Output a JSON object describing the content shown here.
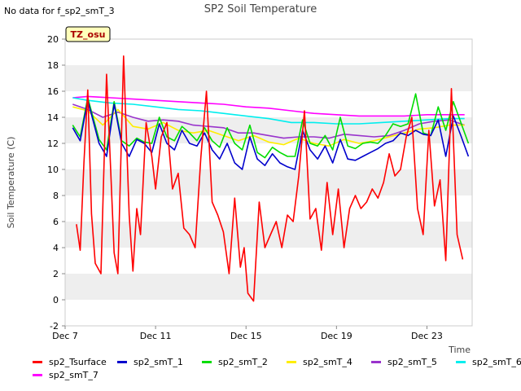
{
  "no_data_note": "No data for f_sp2_smT_3",
  "badge": "TZ_osu",
  "chart_data": {
    "type": "line",
    "title": "SP2 Soil Temperature",
    "xlabel": "Time",
    "ylabel": "Soil Temperature (C)",
    "xlim": [
      "2023-12-07",
      "2023-12-25"
    ],
    "ylim": [
      -2,
      20
    ],
    "yticks": [
      -2,
      0,
      2,
      4,
      6,
      8,
      10,
      12,
      14,
      16,
      18,
      20
    ],
    "xticks": [
      {
        "date": "2023-12-07",
        "label": "Dec 7"
      },
      {
        "date": "2023-12-11",
        "label": "Dec 11"
      },
      {
        "date": "2023-12-15",
        "label": "Dec 15"
      },
      {
        "date": "2023-12-19",
        "label": "Dec 19"
      },
      {
        "date": "2023-12-23",
        "label": "Dec 23"
      }
    ],
    "grid": "horizontal bands",
    "legend_position": "bottom",
    "series": [
      {
        "name": "sp2_Tsurface",
        "color": "#ff0000",
        "x": [
          "2023-12-07T12:00",
          "2023-12-07T16:00",
          "2023-12-07T20:00",
          "2023-12-08T00:00",
          "2023-12-08T04:00",
          "2023-12-08T08:00",
          "2023-12-08T14:00",
          "2023-12-08T20:00",
          "2023-12-09T00:00",
          "2023-12-09T04:00",
          "2023-12-09T08:00",
          "2023-12-09T14:00",
          "2023-12-09T20:00",
          "2023-12-10T00:00",
          "2023-12-10T04:00",
          "2023-12-10T08:00",
          "2023-12-10T14:00",
          "2023-12-10T20:00",
          "2023-12-11T00:00",
          "2023-12-11T06:00",
          "2023-12-11T12:00",
          "2023-12-11T18:00",
          "2023-12-12T00:00",
          "2023-12-12T06:00",
          "2023-12-12T12:00",
          "2023-12-12T18:00",
          "2023-12-13T00:00",
          "2023-12-13T06:00",
          "2023-12-13T12:00",
          "2023-12-13T18:00",
          "2023-12-14T00:00",
          "2023-12-14T06:00",
          "2023-12-14T12:00",
          "2023-12-14T18:00",
          "2023-12-14T22:00",
          "2023-12-15T02:00",
          "2023-12-15T08:00",
          "2023-12-15T14:00",
          "2023-12-15T20:00",
          "2023-12-16T02:00",
          "2023-12-16T08:00",
          "2023-12-16T14:00",
          "2023-12-16T20:00",
          "2023-12-17T02:00",
          "2023-12-17T08:00",
          "2023-12-17T14:00",
          "2023-12-17T20:00",
          "2023-12-18T02:00",
          "2023-12-18T08:00",
          "2023-12-18T14:00",
          "2023-12-18T20:00",
          "2023-12-19T02:00",
          "2023-12-19T08:00",
          "2023-12-19T14:00",
          "2023-12-19T20:00",
          "2023-12-20T02:00",
          "2023-12-20T08:00",
          "2023-12-20T14:00",
          "2023-12-20T20:00",
          "2023-12-21T02:00",
          "2023-12-21T08:00",
          "2023-12-21T14:00",
          "2023-12-21T20:00",
          "2023-12-22T02:00",
          "2023-12-22T08:00",
          "2023-12-22T14:00",
          "2023-12-22T20:00",
          "2023-12-23T02:00",
          "2023-12-23T08:00",
          "2023-12-23T14:00",
          "2023-12-23T20:00",
          "2023-12-24T02:00",
          "2023-12-24T08:00",
          "2023-12-24T14:00"
        ],
        "y": [
          5.8,
          3.8,
          10.5,
          16.1,
          6.6,
          2.8,
          2.0,
          17.3,
          10.5,
          3.6,
          2.0,
          18.7,
          6.5,
          2.2,
          7.0,
          5.0,
          13.6,
          11.0,
          8.5,
          12.5,
          13.6,
          8.5,
          9.7,
          5.5,
          5.0,
          4.0,
          10.9,
          16.0,
          7.5,
          6.5,
          5.2,
          2.0,
          7.8,
          2.5,
          4.0,
          0.5,
          -0.1,
          7.5,
          4.0,
          5.0,
          6.0,
          4.0,
          6.5,
          6.0,
          9.5,
          14.5,
          6.2,
          7.0,
          3.8,
          9.0,
          5.0,
          8.5,
          4.0,
          7.0,
          8.0,
          7.0,
          7.5,
          8.5,
          7.8,
          9.0,
          11.2,
          9.5,
          10.0,
          12.5,
          14.0,
          7.0,
          5.0,
          13.0,
          7.2,
          9.2,
          3.0,
          16.2,
          5.0,
          3.1
        ]
      },
      {
        "name": "sp2_smT_1",
        "color": "#0000cc",
        "x": [
          "2023-12-07T08:00",
          "2023-12-07T16:00",
          "2023-12-08T00:00",
          "2023-12-08T12:00",
          "2023-12-08T20:00",
          "2023-12-09T04:00",
          "2023-12-09T12:00",
          "2023-12-09T20:00",
          "2023-12-10T04:00",
          "2023-12-10T12:00",
          "2023-12-10T20:00",
          "2023-12-11T04:00",
          "2023-12-11T12:00",
          "2023-12-11T20:00",
          "2023-12-12T04:00",
          "2023-12-12T12:00",
          "2023-12-12T20:00",
          "2023-12-13T04:00",
          "2023-12-13T12:00",
          "2023-12-13T20:00",
          "2023-12-14T04:00",
          "2023-12-14T12:00",
          "2023-12-14T20:00",
          "2023-12-15T04:00",
          "2023-12-15T12:00",
          "2023-12-15T20:00",
          "2023-12-16T04:00",
          "2023-12-16T12:00",
          "2023-12-16T20:00",
          "2023-12-17T04:00",
          "2023-12-17T12:00",
          "2023-12-17T20:00",
          "2023-12-18T04:00",
          "2023-12-18T12:00",
          "2023-12-18T20:00",
          "2023-12-19T04:00",
          "2023-12-19T12:00",
          "2023-12-19T20:00",
          "2023-12-20T04:00",
          "2023-12-20T12:00",
          "2023-12-20T20:00",
          "2023-12-21T04:00",
          "2023-12-21T12:00",
          "2023-12-21T20:00",
          "2023-12-22T04:00",
          "2023-12-22T12:00",
          "2023-12-22T20:00",
          "2023-12-23T04:00",
          "2023-12-23T12:00",
          "2023-12-23T20:00",
          "2023-12-24T04:00",
          "2023-12-24T12:00",
          "2023-12-24T20:00"
        ],
        "y": [
          13.2,
          12.2,
          15.3,
          12.0,
          11.0,
          15.0,
          12.0,
          11.0,
          12.3,
          12.0,
          11.3,
          13.5,
          12.0,
          11.5,
          13.0,
          12.0,
          11.8,
          12.8,
          11.5,
          10.8,
          12.0,
          10.5,
          10.0,
          12.5,
          10.8,
          10.3,
          11.2,
          10.5,
          10.2,
          10.0,
          13.0,
          11.5,
          10.8,
          11.8,
          10.5,
          12.3,
          10.8,
          10.7,
          11.0,
          11.3,
          11.6,
          12.0,
          12.2,
          12.8,
          12.6,
          13.0,
          12.7,
          12.6,
          13.8,
          11.0,
          14.1,
          12.6,
          11.0
        ]
      },
      {
        "name": "sp2_smT_2",
        "color": "#00dd00",
        "x": [
          "2023-12-07T08:00",
          "2023-12-07T16:00",
          "2023-12-08T00:00",
          "2023-12-08T12:00",
          "2023-12-08T20:00",
          "2023-12-09T04:00",
          "2023-12-09T12:00",
          "2023-12-09T20:00",
          "2023-12-10T04:00",
          "2023-12-10T12:00",
          "2023-12-10T20:00",
          "2023-12-11T04:00",
          "2023-12-11T12:00",
          "2023-12-11T20:00",
          "2023-12-12T04:00",
          "2023-12-12T12:00",
          "2023-12-12T20:00",
          "2023-12-13T04:00",
          "2023-12-13T12:00",
          "2023-12-13T20:00",
          "2023-12-14T04:00",
          "2023-12-14T12:00",
          "2023-12-14T20:00",
          "2023-12-15T04:00",
          "2023-12-15T12:00",
          "2023-12-15T20:00",
          "2023-12-16T04:00",
          "2023-12-16T12:00",
          "2023-12-16T20:00",
          "2023-12-17T04:00",
          "2023-12-17T12:00",
          "2023-12-17T20:00",
          "2023-12-18T04:00",
          "2023-12-18T12:00",
          "2023-12-18T20:00",
          "2023-12-19T04:00",
          "2023-12-19T12:00",
          "2023-12-19T20:00",
          "2023-12-20T04:00",
          "2023-12-20T12:00",
          "2023-12-20T20:00",
          "2023-12-21T04:00",
          "2023-12-21T12:00",
          "2023-12-21T20:00",
          "2023-12-22T04:00",
          "2023-12-22T12:00",
          "2023-12-22T20:00",
          "2023-12-23T04:00",
          "2023-12-23T12:00",
          "2023-12-23T20:00",
          "2023-12-24T04:00",
          "2023-12-24T12:00",
          "2023-12-24T20:00"
        ],
        "y": [
          13.4,
          12.5,
          15.5,
          12.3,
          11.5,
          15.2,
          12.2,
          11.8,
          12.4,
          12.1,
          12.0,
          14.0,
          12.5,
          12.2,
          13.3,
          12.8,
          12.2,
          13.2,
          12.2,
          11.7,
          13.2,
          12.0,
          11.5,
          13.4,
          11.3,
          10.9,
          11.7,
          11.3,
          11.0,
          11.0,
          13.8,
          12.0,
          11.8,
          12.6,
          11.5,
          14.0,
          11.8,
          11.6,
          12.0,
          12.1,
          12.0,
          12.6,
          13.5,
          13.3,
          13.5,
          15.8,
          12.8,
          12.6,
          14.8,
          13.0,
          15.2,
          13.6,
          12.0
        ]
      },
      {
        "name": "sp2_smT_4",
        "color": "#ffee00",
        "x": [
          "2023-12-07T08:00",
          "2023-12-08T00:00",
          "2023-12-08T16:00",
          "2023-12-09T08:00",
          "2023-12-10T00:00",
          "2023-12-10T16:00",
          "2023-12-11T08:00",
          "2023-12-12T00:00",
          "2023-12-12T16:00",
          "2023-12-13T08:00",
          "2023-12-14T00:00",
          "2023-12-14T16:00",
          "2023-12-15T08:00",
          "2023-12-16T00:00",
          "2023-12-16T16:00",
          "2023-12-17T08:00",
          "2023-12-18T00:00",
          "2023-12-18T16:00",
          "2023-12-19T08:00",
          "2023-12-20T00:00",
          "2023-12-20T16:00",
          "2023-12-21T08:00",
          "2023-12-22T00:00",
          "2023-12-22T16:00",
          "2023-12-23T08:00",
          "2023-12-24T00:00",
          "2023-12-24T16:00"
        ],
        "y": [
          14.8,
          14.5,
          13.4,
          14.6,
          13.3,
          13.1,
          13.6,
          13.0,
          12.8,
          13.0,
          12.6,
          12.2,
          12.6,
          12.1,
          11.9,
          12.4,
          12.0,
          11.8,
          12.3,
          12.0,
          12.2,
          12.5,
          12.8,
          13.1,
          13.2,
          13.4,
          13.4
        ]
      },
      {
        "name": "sp2_smT_5",
        "color": "#9933cc",
        "x": [
          "2023-12-07T08:00",
          "2023-12-08T00:00",
          "2023-12-08T16:00",
          "2023-12-09T08:00",
          "2023-12-10T00:00",
          "2023-12-10T16:00",
          "2023-12-11T08:00",
          "2023-12-12T00:00",
          "2023-12-12T16:00",
          "2023-12-13T08:00",
          "2023-12-14T00:00",
          "2023-12-14T16:00",
          "2023-12-15T08:00",
          "2023-12-16T00:00",
          "2023-12-16T16:00",
          "2023-12-17T08:00",
          "2023-12-18T00:00",
          "2023-12-18T16:00",
          "2023-12-19T08:00",
          "2023-12-20T00:00",
          "2023-12-20T16:00",
          "2023-12-21T08:00",
          "2023-12-22T00:00",
          "2023-12-22T16:00",
          "2023-12-23T08:00",
          "2023-12-24T00:00",
          "2023-12-24T16:00"
        ],
        "y": [
          15.0,
          14.6,
          14.0,
          14.4,
          14.0,
          13.7,
          13.8,
          13.7,
          13.4,
          13.3,
          13.2,
          12.8,
          12.8,
          12.6,
          12.4,
          12.5,
          12.5,
          12.4,
          12.7,
          12.6,
          12.5,
          12.6,
          13.0,
          13.5,
          13.7,
          13.8,
          13.4
        ]
      },
      {
        "name": "sp2_smT_6",
        "color": "#00eeee",
        "x": [
          "2023-12-07T08:00",
          "2023-12-08T00:00",
          "2023-12-09T00:00",
          "2023-12-10T00:00",
          "2023-12-11T00:00",
          "2023-12-12T00:00",
          "2023-12-13T00:00",
          "2023-12-14T00:00",
          "2023-12-15T00:00",
          "2023-12-16T00:00",
          "2023-12-17T00:00",
          "2023-12-18T00:00",
          "2023-12-19T00:00",
          "2023-12-20T00:00",
          "2023-12-21T00:00",
          "2023-12-22T00:00",
          "2023-12-23T00:00",
          "2023-12-24T00:00",
          "2023-12-24T16:00"
        ],
        "y": [
          15.5,
          15.3,
          15.1,
          15.0,
          14.8,
          14.6,
          14.5,
          14.3,
          14.1,
          13.9,
          13.6,
          13.6,
          13.5,
          13.5,
          13.6,
          13.7,
          13.8,
          13.9,
          13.9
        ]
      },
      {
        "name": "sp2_smT_7",
        "color": "#ff00ff",
        "x": [
          "2023-12-07T08:00",
          "2023-12-08T00:00",
          "2023-12-09T00:00",
          "2023-12-10T00:00",
          "2023-12-11T00:00",
          "2023-12-12T00:00",
          "2023-12-13T00:00",
          "2023-12-14T00:00",
          "2023-12-15T00:00",
          "2023-12-16T00:00",
          "2023-12-17T00:00",
          "2023-12-18T00:00",
          "2023-12-19T00:00",
          "2023-12-20T00:00",
          "2023-12-21T00:00",
          "2023-12-22T00:00",
          "2023-12-23T00:00",
          "2023-12-24T00:00",
          "2023-12-24T16:00"
        ],
        "y": [
          15.5,
          15.6,
          15.5,
          15.4,
          15.3,
          15.2,
          15.1,
          15.0,
          14.8,
          14.7,
          14.5,
          14.3,
          14.2,
          14.1,
          14.1,
          14.1,
          14.2,
          14.2,
          14.2
        ]
      }
    ]
  }
}
